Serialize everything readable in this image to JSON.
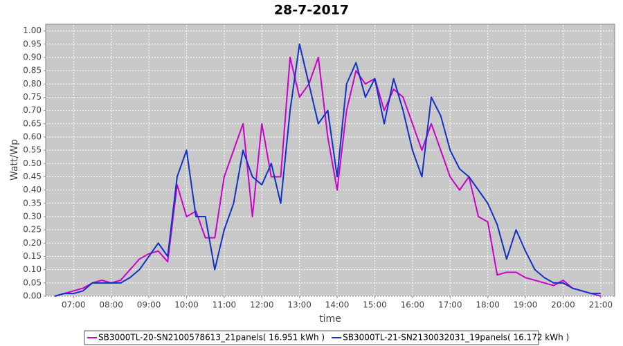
{
  "chart_data": {
    "type": "line",
    "title": "28-7-2017",
    "x_label": "time",
    "y_label": "Watt/Wp",
    "x": [
      6.5,
      6.75,
      7.0,
      7.25,
      7.5,
      7.75,
      8.0,
      8.25,
      8.5,
      8.75,
      9.0,
      9.25,
      9.5,
      9.75,
      10.0,
      10.25,
      10.5,
      10.75,
      11.0,
      11.25,
      11.5,
      11.75,
      12.0,
      12.25,
      12.5,
      12.75,
      13.0,
      13.25,
      13.5,
      13.75,
      14.0,
      14.25,
      14.5,
      14.75,
      15.0,
      15.25,
      15.5,
      15.75,
      16.0,
      16.25,
      16.5,
      16.75,
      17.0,
      17.25,
      17.5,
      17.75,
      18.0,
      18.25,
      18.5,
      18.75,
      19.0,
      19.25,
      19.5,
      19.75,
      20.0,
      20.25,
      20.5,
      20.75,
      21.0
    ],
    "series": [
      {
        "name": "SB3000TL-20-SN2100578613_21panels( 16.951 kWh )",
        "color": "#cc00cc",
        "values": [
          0,
          0.01,
          0.02,
          0.03,
          0.05,
          0.06,
          0.05,
          0.06,
          0.1,
          0.14,
          0.16,
          0.17,
          0.13,
          0.42,
          0.3,
          0.32,
          0.22,
          0.22,
          0.45,
          0.55,
          0.65,
          0.3,
          0.65,
          0.45,
          0.45,
          0.9,
          0.75,
          0.8,
          0.9,
          0.6,
          0.4,
          0.7,
          0.85,
          0.8,
          0.82,
          0.7,
          0.78,
          0.75,
          0.65,
          0.55,
          0.65,
          0.55,
          0.45,
          0.4,
          0.45,
          0.3,
          0.28,
          0.08,
          0.09,
          0.09,
          0.07,
          0.06,
          0.05,
          0.04,
          0.06,
          0.03,
          0.02,
          0.01,
          0.0
        ]
      },
      {
        "name": "SB3000TL-21-SN2130032031_19panels( 16.172 kWh )",
        "color": "#1030c8",
        "values": [
          0,
          0.01,
          0.01,
          0.02,
          0.05,
          0.05,
          0.05,
          0.05,
          0.07,
          0.1,
          0.15,
          0.2,
          0.15,
          0.45,
          0.55,
          0.3,
          0.3,
          0.1,
          0.25,
          0.35,
          0.55,
          0.45,
          0.42,
          0.5,
          0.35,
          0.7,
          0.95,
          0.8,
          0.65,
          0.7,
          0.45,
          0.8,
          0.88,
          0.75,
          0.82,
          0.65,
          0.82,
          0.7,
          0.55,
          0.45,
          0.75,
          0.68,
          0.55,
          0.48,
          0.45,
          0.4,
          0.35,
          0.27,
          0.14,
          0.25,
          0.17,
          0.1,
          0.07,
          0.05,
          0.05,
          0.03,
          0.02,
          0.01,
          0.01
        ]
      }
    ],
    "xlim": [
      6.26,
      21.37
    ],
    "xticks": [
      {
        "value": 7,
        "label": "07:00"
      },
      {
        "value": 8,
        "label": "08:00"
      },
      {
        "value": 9,
        "label": "09:00"
      },
      {
        "value": 10,
        "label": "10:00"
      },
      {
        "value": 11,
        "label": "11:00"
      },
      {
        "value": 12,
        "label": "12:00"
      },
      {
        "value": 13,
        "label": "13:00"
      },
      {
        "value": 14,
        "label": "14:00"
      },
      {
        "value": 15,
        "label": "15:00"
      },
      {
        "value": 16,
        "label": "16:00"
      },
      {
        "value": 17,
        "label": "17:00"
      },
      {
        "value": 18,
        "label": "18:00"
      },
      {
        "value": 19,
        "label": "19:00"
      },
      {
        "value": 20,
        "label": "20:00"
      },
      {
        "value": 21,
        "label": "21:00"
      }
    ],
    "ylim": [
      0,
      1.025
    ],
    "yticks": [
      {
        "value": 0,
        "label": "0.00"
      },
      {
        "value": 0.05,
        "label": "0.05"
      },
      {
        "value": 0.1,
        "label": "0.10"
      },
      {
        "value": 0.15,
        "label": "0.15"
      },
      {
        "value": 0.2,
        "label": "0.20"
      },
      {
        "value": 0.25,
        "label": "0.25"
      },
      {
        "value": 0.3,
        "label": "0.30"
      },
      {
        "value": 0.35,
        "label": "0.35"
      },
      {
        "value": 0.4,
        "label": "0.40"
      },
      {
        "value": 0.45,
        "label": "0.45"
      },
      {
        "value": 0.5,
        "label": "0.50"
      },
      {
        "value": 0.55,
        "label": "0.55"
      },
      {
        "value": 0.6,
        "label": "0.60"
      },
      {
        "value": 0.65,
        "label": "0.65"
      },
      {
        "value": 0.7,
        "label": "0.70"
      },
      {
        "value": 0.75,
        "label": "0.75"
      },
      {
        "value": 0.8,
        "label": "0.80"
      },
      {
        "value": 0.85,
        "label": "0.85"
      },
      {
        "value": 0.9,
        "label": "0.90"
      },
      {
        "value": 0.95,
        "label": "0.95"
      },
      {
        "value": 1,
        "label": "1.00"
      }
    ],
    "grid": true,
    "legend": "bottom"
  }
}
